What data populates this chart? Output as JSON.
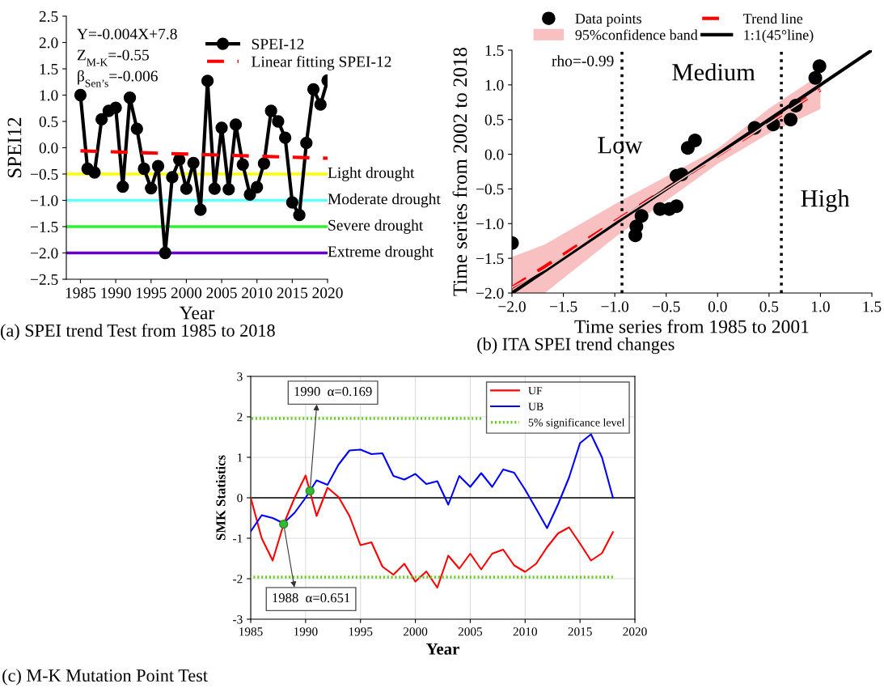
{
  "chart_data": [
    {
      "type": "line",
      "title": "(a) SPEI trend Test from 1985 to 2018",
      "xlabel": "Year",
      "ylabel": "SPEI12",
      "annotations": [
        "Y=-0.004X+7.8",
        "Z$_{M-K}$=-0.55",
        "β$_{Sen’s}$=-0.006"
      ],
      "x": [
        1985,
        1986,
        1987,
        1988,
        1989,
        1990,
        1991,
        1992,
        1993,
        1994,
        1995,
        1996,
        1997,
        1998,
        1999,
        2000,
        2001,
        2002,
        2003,
        2004,
        2005,
        2006,
        2007,
        2008,
        2009,
        2010,
        2011,
        2012,
        2013,
        2014,
        2015,
        2016,
        2017,
        2018,
        2019,
        2020
      ],
      "series": [
        {
          "name": "SPEI-12",
          "color": "#000000",
          "marker": "circle",
          "line_style": "solid",
          "values": [
            1.0,
            -0.4,
            -0.47,
            0.54,
            0.7,
            0.76,
            -0.74,
            0.95,
            0.36,
            -0.4,
            -0.77,
            -0.35,
            -2.0,
            -0.56,
            -0.23,
            -0.78,
            -0.29,
            -1.18,
            1.27,
            -0.78,
            0.38,
            -0.79,
            0.44,
            -0.32,
            -0.89,
            -0.75,
            -0.3,
            0.7,
            0.5,
            0.19,
            -1.04,
            -1.28,
            0.09,
            1.11,
            0.82,
            1.28
          ]
        },
        {
          "name": "Linear fitting SPEI-12",
          "color": "#ff0000",
          "line_style": "dashed",
          "x": [
            1985,
            2020
          ],
          "values": [
            -0.06,
            -0.2
          ]
        }
      ],
      "ref_lines": [
        {
          "axis": "y",
          "value": -0.5,
          "label": "Light drought",
          "color": "#ffff00"
        },
        {
          "axis": "y",
          "value": -1.0,
          "label": "Moderate drought",
          "color": "#66ffff"
        },
        {
          "axis": "y",
          "value": -1.5,
          "label": "Severe drought",
          "color": "#33ee33"
        },
        {
          "axis": "y",
          "value": -2.0,
          "label": "Extreme drought",
          "color": "#6600cc"
        }
      ],
      "xlim": [
        1983,
        2020
      ],
      "xticks": [
        1985,
        1990,
        1995,
        2000,
        2005,
        2010,
        2015,
        2020
      ],
      "ylim": [
        -2.5,
        2.5
      ],
      "yticks": [
        {
          "value": -2.5,
          "label": "−2.5"
        },
        {
          "value": -2.0,
          "label": "−2.0"
        },
        {
          "value": -1.5,
          "label": "−1.5"
        },
        {
          "value": -1.0,
          "label": "−1.0"
        },
        {
          "value": -0.5,
          "label": "−0.5"
        },
        {
          "value": 0,
          "label": "0.0"
        },
        {
          "value": 0.5,
          "label": "0.5"
        },
        {
          "value": 1.0,
          "label": "1.0"
        },
        {
          "value": 1.5,
          "label": "1.5"
        },
        {
          "value": 2.0,
          "label": "2.0"
        },
        {
          "value": 2.5,
          "label": "2.5"
        }
      ],
      "legend": "top right",
      "grid": false
    },
    {
      "type": "scatter",
      "title": "(b) ITA SPEI trend changes",
      "xlabel": "Time series from 1985 to 2001",
      "ylabel": "Time series from 2002 to 2018",
      "annotations": [
        "rho=-0.99",
        "Low",
        "Medium",
        "High"
      ],
      "series": [
        {
          "name": "Data points",
          "type": "scatter",
          "color": "#000000",
          "x": [
            -2.0,
            -0.8,
            -0.79,
            -0.74,
            -0.56,
            -0.47,
            -0.4,
            -0.4,
            -0.35,
            -0.29,
            -0.22,
            0.36,
            0.54,
            0.71,
            0.76,
            0.95,
            0.99
          ],
          "values": [
            -1.28,
            -1.17,
            -1.04,
            -0.89,
            -0.79,
            -0.79,
            -0.75,
            -0.31,
            -0.29,
            0.09,
            0.2,
            0.38,
            0.43,
            0.5,
            0.7,
            1.1,
            1.27
          ]
        },
        {
          "name": "95%confidence band",
          "type": "line",
          "color": "#f8c0c0",
          "x": [
            -2.0,
            -1.68,
            -1.0,
            0.0,
            0.5,
            1.0
          ],
          "values": [
            -1.92,
            -1.66,
            -0.97,
            -0.03,
            0.45,
            0.93
          ],
          "lower": [
            -2.0,
            -2.0,
            -1.2,
            -0.14,
            0.3,
            0.65
          ],
          "upper": [
            -1.48,
            -1.3,
            -0.72,
            0.08,
            0.66,
            1.15
          ]
        },
        {
          "name": "Trend line",
          "type": "line",
          "color": "#ff0000",
          "line_style": "dashed",
          "x": [
            -2.0,
            1.0
          ],
          "values": [
            -1.92,
            0.93
          ]
        },
        {
          "name": "1:1(45°line)",
          "type": "line",
          "color": "#000000",
          "line_style": "solid",
          "x": [
            -2.0,
            1.5
          ],
          "values": [
            -2.0,
            1.5
          ]
        }
      ],
      "ref_lines": [
        {
          "axis": "x",
          "value": -0.93,
          "color": "#000000",
          "line_style": "dotted"
        },
        {
          "axis": "x",
          "value": 0.62,
          "color": "#000000",
          "line_style": "dotted"
        }
      ],
      "xlim": [
        -2.0,
        1.5
      ],
      "xticks": [
        {
          "value": -2.0,
          "label": "−2.0"
        },
        {
          "value": -1.5,
          "label": "−1.5"
        },
        {
          "value": -1.0,
          "label": "−1.0"
        },
        {
          "value": -0.5,
          "label": "−0.5"
        },
        {
          "value": 0,
          "label": "0.0"
        },
        {
          "value": 0.5,
          "label": "0.5"
        },
        {
          "value": 1.0,
          "label": "1.0"
        },
        {
          "value": 1.5,
          "label": "1.5"
        }
      ],
      "ylim": [
        -2.0,
        1.5
      ],
      "yticks": [
        {
          "value": -2.0,
          "label": "−2.0"
        },
        {
          "value": -1.5,
          "label": "−1.5"
        },
        {
          "value": -1.0,
          "label": "−1.0"
        },
        {
          "value": -0.5,
          "label": "−0.5"
        },
        {
          "value": 0,
          "label": "0.0"
        },
        {
          "value": 0.5,
          "label": "0.5"
        },
        {
          "value": 1.0,
          "label": "1.0"
        },
        {
          "value": 1.5,
          "label": "1.5"
        }
      ],
      "legend": "top",
      "grid": false
    },
    {
      "type": "line",
      "title": "(c) M-K Mutation Point Test",
      "xlabel": "Year",
      "ylabel": "SMK Statistics",
      "annotations": [
        "1990  α=0.169",
        "1988  α=0.651"
      ],
      "x": [
        1985,
        1986,
        1987,
        1988,
        1989,
        1990,
        1991,
        1992,
        1993,
        1994,
        1995,
        1996,
        1997,
        1998,
        1999,
        2000,
        2001,
        2002,
        2003,
        2004,
        2005,
        2006,
        2007,
        2008,
        2009,
        2010,
        2011,
        2012,
        2013,
        2014,
        2015,
        2016,
        2017,
        2018
      ],
      "series": [
        {
          "name": "UF",
          "color": "#ff0000",
          "values": [
            0,
            -1.0,
            -1.55,
            -0.65,
            0.0,
            0.55,
            -0.45,
            0.25,
            0.02,
            -0.45,
            -1.17,
            -1.1,
            -1.7,
            -1.9,
            -1.63,
            -2.07,
            -1.82,
            -2.22,
            -1.43,
            -1.75,
            -1.38,
            -1.77,
            -1.38,
            -1.28,
            -1.67,
            -1.83,
            -1.63,
            -1.22,
            -0.88,
            -0.73,
            -1.13,
            -1.55,
            -1.37,
            -0.85
          ]
        },
        {
          "name": "UB",
          "color": "#0000ff",
          "values": [
            -0.83,
            -0.43,
            -0.5,
            -0.63,
            -0.37,
            0.0,
            0.43,
            0.32,
            0.82,
            1.17,
            1.19,
            1.08,
            1.1,
            0.54,
            0.45,
            0.59,
            0.34,
            0.41,
            -0.17,
            0.54,
            0.27,
            0.61,
            0.27,
            0.7,
            0.62,
            0.2,
            -0.27,
            -0.75,
            -0.16,
            0.5,
            1.35,
            1.57,
            1.0,
            0.0
          ]
        },
        {
          "name": "5% significance level",
          "color": "#66cc22",
          "line_style": "dotted",
          "x": [
            1985,
            2006
          ],
          "values": [
            1.96,
            1.96
          ]
        },
        {
          "color": "#66cc22",
          "line_style": "dotted",
          "x": [
            1985,
            2018
          ],
          "values": [
            -1.96,
            -1.96
          ]
        },
        {
          "type": "scatter",
          "color": "#33bb33",
          "x": [
            1990.4,
            1988
          ],
          "values": [
            0.17,
            -0.65
          ]
        }
      ],
      "ref_lines": [
        {
          "axis": "y",
          "value": 0,
          "color": "#000000"
        }
      ],
      "xlim": [
        1985,
        2020
      ],
      "xticks": [
        1985,
        1990,
        1995,
        2000,
        2005,
        2010,
        2015,
        2020
      ],
      "ylim": [
        -3,
        3
      ],
      "yticks": [
        -3,
        -2,
        -1,
        0,
        1,
        2,
        3
      ],
      "legend": "top right",
      "grid": true
    }
  ]
}
